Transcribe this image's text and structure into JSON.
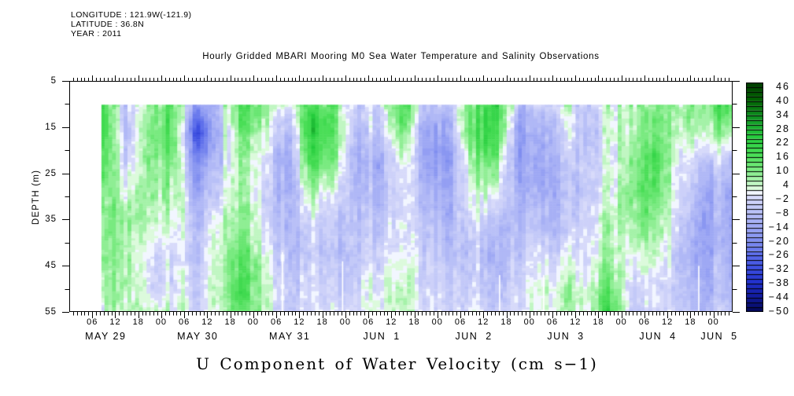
{
  "meta": {
    "longitude_label": "LONGITUDE : 121.9W(-121.9)",
    "latitude_label": "LATITUDE : 36.8N",
    "year_label": "YEAR : 2011"
  },
  "title": "Hourly Gridded MBARI Mooring M0 Sea Water Temperature and Salinity Observations",
  "bottom_title": "U Component of Water Velocity (cm s−1)",
  "chart_data": {
    "type": "heatmap",
    "units": "cm s-1",
    "x_axis": {
      "start": "MAY 29 2011 00:00",
      "end": "JUN 5 2011 05:00",
      "hours_total": 173,
      "major_tick_every_hours": 6,
      "minor_tick_every_hours": 1,
      "hour_labels": [
        "06",
        "12",
        "18",
        "00",
        "06",
        "12",
        "18",
        "00",
        "06",
        "12",
        "18",
        "00",
        "06",
        "12",
        "18",
        "00",
        "06",
        "12",
        "18",
        "00",
        "06",
        "12",
        "18",
        "00",
        "06",
        "12",
        "18",
        "00"
      ],
      "first_labeled_hour": 6,
      "day_labels": [
        {
          "text": "MAY 29",
          "center_hour": 9.5
        },
        {
          "text": "MAY 30",
          "center_hour": 33.5
        },
        {
          "text": "MAY 31",
          "center_hour": 57.5
        },
        {
          "text": "JUN  1",
          "center_hour": 81.5
        },
        {
          "text": "JUN  2",
          "center_hour": 105.5
        },
        {
          "text": "JUN  3",
          "center_hour": 129.5
        },
        {
          "text": "JUN  4",
          "center_hour": 153.5
        },
        {
          "text": "JUN  5",
          "center_hour": 169.5
        }
      ]
    },
    "y_axis": {
      "label": "DEPTH (m)",
      "min": 5,
      "max": 55,
      "labeled_ticks": [
        5,
        15,
        25,
        35,
        45,
        55
      ],
      "minor_ticks": [
        10,
        20,
        30,
        40,
        50
      ]
    },
    "colorbar": {
      "min": -50,
      "max": 48,
      "cell_step": 2,
      "labels": [
        46,
        40,
        34,
        28,
        22,
        16,
        10,
        4,
        -2,
        -8,
        -14,
        -20,
        -26,
        -32,
        -38,
        -44,
        -50
      ],
      "stops": [
        {
          "v": 48,
          "c": "#003800"
        },
        {
          "v": 40,
          "c": "#006000"
        },
        {
          "v": 32,
          "c": "#0f9422"
        },
        {
          "v": 24,
          "c": "#24cc3c"
        },
        {
          "v": 16,
          "c": "#4ade57"
        },
        {
          "v": 10,
          "c": "#79ea80"
        },
        {
          "v": 6,
          "c": "#a4f2a8"
        },
        {
          "v": 2,
          "c": "#dcfadc"
        },
        {
          "v": 0,
          "c": "#f2f6ff"
        },
        {
          "v": -2,
          "c": "#d7dafa"
        },
        {
          "v": -8,
          "c": "#b9c0f7"
        },
        {
          "v": -14,
          "c": "#9ea8f4"
        },
        {
          "v": -20,
          "c": "#808ef0"
        },
        {
          "v": -26,
          "c": "#5f70eb"
        },
        {
          "v": -32,
          "c": "#3e50e1"
        },
        {
          "v": -38,
          "c": "#2332cd"
        },
        {
          "v": -44,
          "c": "#121ca0"
        },
        {
          "v": -50,
          "c": "#050a5f"
        }
      ]
    },
    "grid": {
      "comment": "Estimated coarse field (cm/s), columns every 6 h, read from the plot",
      "data_start_hour": 8.2,
      "top_depth": 10,
      "time_hours": [
        9,
        15,
        21,
        27,
        33,
        39,
        45,
        51,
        57,
        63,
        69,
        75,
        81,
        87,
        93,
        99,
        105,
        111,
        117,
        123,
        129,
        135,
        141,
        147,
        153,
        159,
        165,
        171
      ],
      "depths_m": [
        10,
        16,
        22,
        29,
        36,
        43,
        50,
        55
      ],
      "values_by_time": [
        [
          14,
          16,
          12,
          10,
          8,
          8,
          6,
          4
        ],
        [
          -6,
          -8,
          -4,
          4,
          8,
          6,
          8,
          6
        ],
        [
          8,
          10,
          8,
          6,
          2,
          -4,
          -4,
          2
        ],
        [
          12,
          12,
          8,
          4,
          0,
          -4,
          -2,
          0
        ],
        [
          -14,
          -28,
          -16,
          -8,
          -4,
          -2,
          0,
          0
        ],
        [
          -8,
          -10,
          -8,
          -4,
          2,
          4,
          6,
          4
        ],
        [
          20,
          14,
          10,
          10,
          12,
          16,
          20,
          16
        ],
        [
          6,
          2,
          -4,
          -6,
          -4,
          0,
          2,
          2
        ],
        [
          2,
          -6,
          -10,
          -8,
          -6,
          -4,
          0,
          -2
        ],
        [
          22,
          26,
          20,
          8,
          0,
          -2,
          0,
          2
        ],
        [
          14,
          16,
          10,
          2,
          -4,
          -6,
          -2,
          0
        ],
        [
          -4,
          -8,
          -10,
          -8,
          -6,
          -4,
          -2,
          0
        ],
        [
          -2,
          -6,
          -12,
          -10,
          -6,
          -2,
          2,
          2
        ],
        [
          18,
          10,
          2,
          -2,
          -2,
          0,
          4,
          4
        ],
        [
          -6,
          -14,
          -12,
          -8,
          -4,
          -2,
          0,
          0
        ],
        [
          -4,
          -10,
          -14,
          -10,
          -8,
          -6,
          -2,
          -2
        ],
        [
          16,
          18,
          12,
          6,
          0,
          -4,
          -2,
          0
        ],
        [
          24,
          22,
          14,
          4,
          -6,
          -10,
          -6,
          -4
        ],
        [
          -6,
          -12,
          -14,
          -10,
          -6,
          -4,
          0,
          2
        ],
        [
          -4,
          -8,
          -10,
          -8,
          -4,
          2,
          6,
          4
        ],
        [
          4,
          -2,
          -6,
          -8,
          -6,
          0,
          6,
          6
        ],
        [
          -6,
          -8,
          -6,
          -6,
          -4,
          -2,
          2,
          2
        ],
        [
          6,
          4,
          2,
          4,
          8,
          10,
          16,
          22
        ],
        [
          10,
          8,
          12,
          14,
          10,
          4,
          0,
          -2
        ],
        [
          8,
          12,
          16,
          12,
          8,
          2,
          -2,
          -4
        ],
        [
          10,
          6,
          2,
          0,
          -2,
          -4,
          -4,
          -2
        ],
        [
          16,
          10,
          0,
          -6,
          -8,
          -8,
          -6,
          -4
        ],
        [
          18,
          8,
          -4,
          -10,
          -10,
          -8,
          -6,
          -4
        ]
      ],
      "missing_data_gaps": [
        {
          "hour": 55.3,
          "from_depth": 42
        },
        {
          "hour": 71,
          "from_depth": 44
        },
        {
          "hour": 112,
          "from_depth": 47
        },
        {
          "hour": 123.5,
          "from_depth": 47
        },
        {
          "hour": 164,
          "from_depth": 45
        }
      ]
    }
  },
  "texture": {
    "seed": 7,
    "column_noise": 7,
    "cell_noise": 5
  }
}
